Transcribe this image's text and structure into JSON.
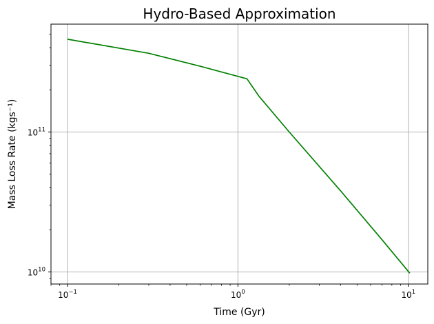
{
  "chart_data": {
    "type": "line",
    "title": "Hydro-Based Approximation",
    "xlabel": "Time (Gyr)",
    "ylabel": "Mass Loss Rate (kgs⁻¹)",
    "xscale": "log",
    "yscale": "log",
    "xlim": [
      0.08,
      13
    ],
    "ylim": [
      8200000000.0,
      590000000000.0
    ],
    "grid": true,
    "legend": "none",
    "x_ticks": [
      {
        "value": 0.1,
        "base": "10",
        "exp": "−1"
      },
      {
        "value": 1,
        "base": "10",
        "exp": "0"
      },
      {
        "value": 10,
        "base": "10",
        "exp": "1"
      }
    ],
    "y_ticks": [
      {
        "value": 10000000000.0,
        "base": "10",
        "exp": "10"
      },
      {
        "value": 100000000000.0,
        "base": "10",
        "exp": "11"
      }
    ],
    "series": [
      {
        "color": "#008000",
        "x": [
          0.1,
          0.3,
          0.6,
          1.13,
          1.33,
          2.0,
          4.0,
          7.0,
          10.2
        ],
        "y": [
          460000000000.0,
          365000000000.0,
          295000000000.0,
          240000000000.0,
          180000000000.0,
          100000000000.0,
          38000000000.0,
          17000000000.0,
          9800000000.0
        ]
      }
    ]
  }
}
